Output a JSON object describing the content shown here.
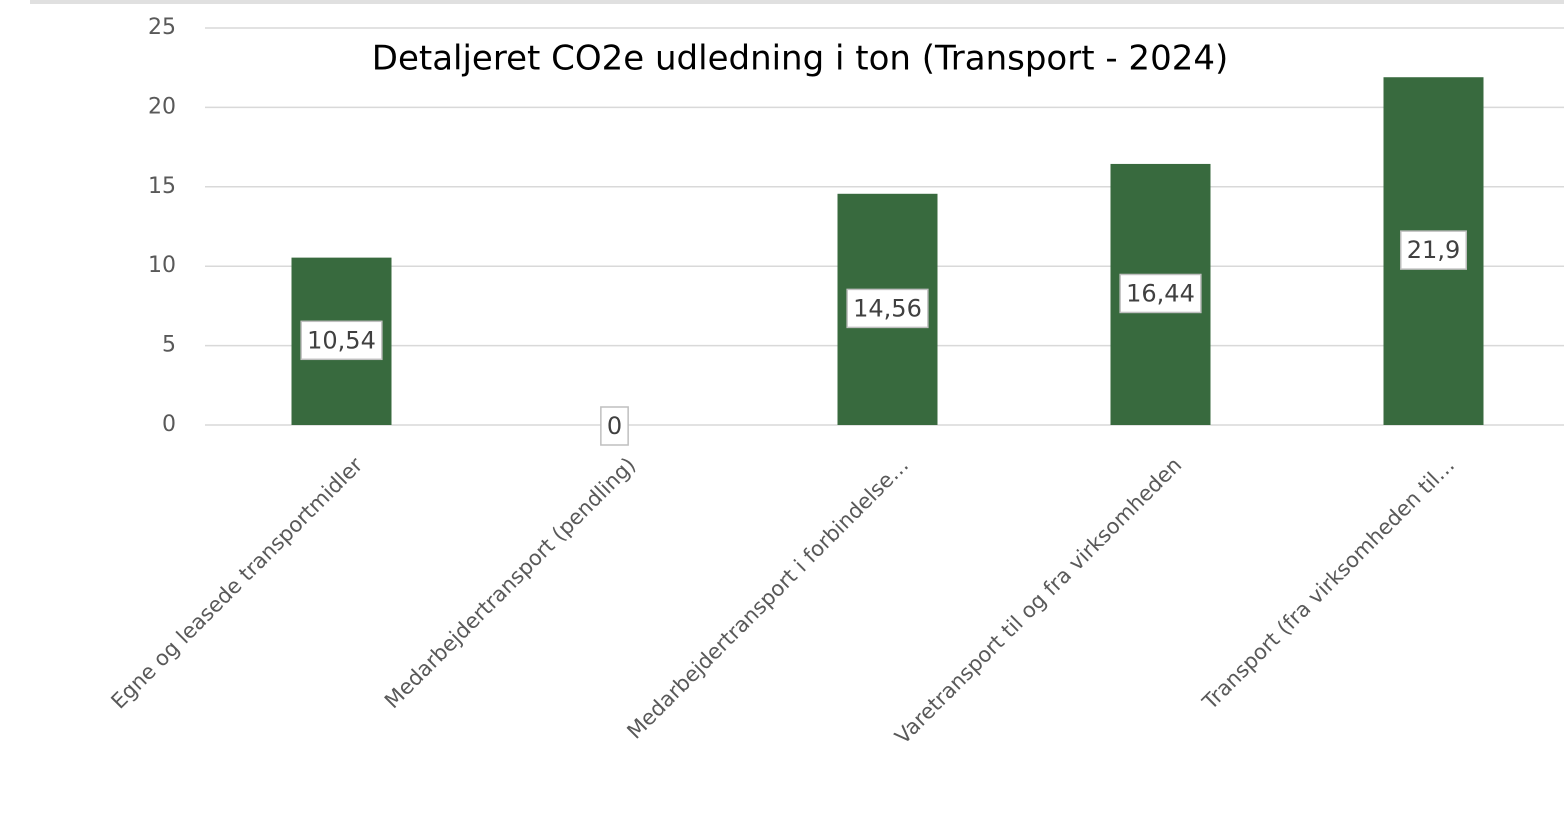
{
  "chart_data": {
    "type": "bar",
    "title": "Detaljeret CO2e udledning i ton (Transport - 2024)",
    "categories": [
      "Egne og leasede transportmidler",
      "Medarbejdertransport (pendling)",
      "Medarbejdertransport i forbindelse…",
      "Varetransport til og fra virksomheden",
      "Transport (fra virksomheden til…"
    ],
    "values": [
      10.54,
      0,
      14.56,
      16.44,
      21.9
    ],
    "value_labels": [
      "10,54",
      "0",
      "14,56",
      "16,44",
      "21,9"
    ],
    "color": "#386a3e",
    "ylim": [
      0,
      25
    ],
    "yticks": [
      0,
      5,
      10,
      15,
      20,
      25
    ],
    "grid": true
  }
}
